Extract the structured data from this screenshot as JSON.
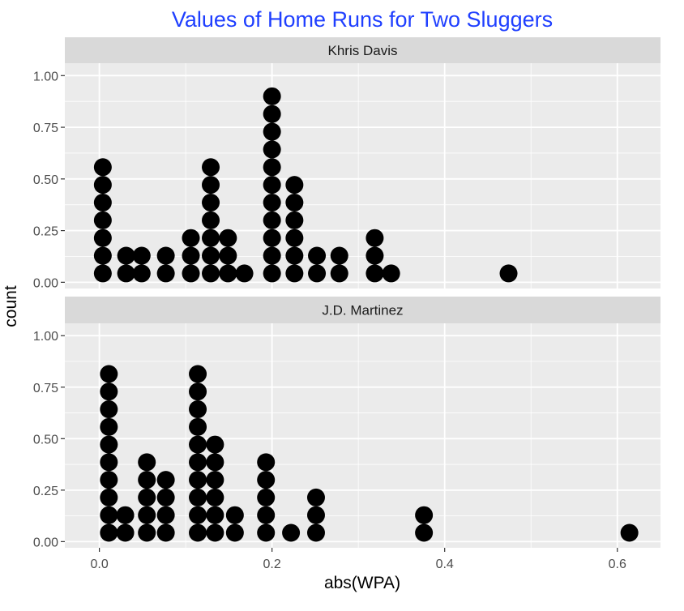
{
  "chart_data": {
    "type": "dotplot",
    "title": "Values of Home Runs for Two Sluggers",
    "xlabel": "abs(WPA)",
    "ylabel": "count",
    "xlim": [
      -0.04,
      0.65
    ],
    "ylim": [
      -0.03,
      1.06
    ],
    "x_ticks": [
      "0.0",
      "0.2",
      "0.4",
      "0.6"
    ],
    "y_ticks": [
      "0.00",
      "0.25",
      "0.50",
      "0.75",
      "1.00"
    ],
    "y_tick_values": [
      0,
      0.25,
      0.5,
      0.75,
      1.0
    ],
    "x_tick_values": [
      0,
      0.2,
      0.4,
      0.6
    ],
    "x_minor_values": [
      0.1,
      0.3,
      0.5
    ],
    "y_minor_values": [
      0.125,
      0.375,
      0.625,
      0.875
    ],
    "grid": true,
    "panels": [
      {
        "label": "Khris Davis",
        "stacks": [
          {
            "x": 0.004,
            "count": 7
          },
          {
            "x": 0.031,
            "count": 2
          },
          {
            "x": 0.049,
            "count": 2
          },
          {
            "x": 0.077,
            "count": 2
          },
          {
            "x": 0.106,
            "count": 3
          },
          {
            "x": 0.129,
            "count": 7
          },
          {
            "x": 0.149,
            "count": 3
          },
          {
            "x": 0.168,
            "count": 1
          },
          {
            "x": 0.2,
            "count": 11
          },
          {
            "x": 0.226,
            "count": 6
          },
          {
            "x": 0.252,
            "count": 2
          },
          {
            "x": 0.278,
            "count": 2
          },
          {
            "x": 0.319,
            "count": 3
          },
          {
            "x": 0.338,
            "count": 1
          },
          {
            "x": 0.474,
            "count": 1
          }
        ]
      },
      {
        "label": "J.D. Martinez",
        "stacks": [
          {
            "x": 0.011,
            "count": 10
          },
          {
            "x": 0.03,
            "count": 2
          },
          {
            "x": 0.055,
            "count": 5
          },
          {
            "x": 0.077,
            "count": 4
          },
          {
            "x": 0.114,
            "count": 10
          },
          {
            "x": 0.134,
            "count": 6
          },
          {
            "x": 0.157,
            "count": 2
          },
          {
            "x": 0.193,
            "count": 5
          },
          {
            "x": 0.222,
            "count": 1
          },
          {
            "x": 0.251,
            "count": 3
          },
          {
            "x": 0.376,
            "count": 2
          },
          {
            "x": 0.614,
            "count": 1
          }
        ]
      }
    ],
    "dot_step": 0.0857
  },
  "colors": {
    "title": "#1f3fff",
    "panel_bg": "#ebebeb",
    "strip_bg": "#d9d9d9",
    "grid": "#ffffff",
    "dot": "#000000"
  }
}
